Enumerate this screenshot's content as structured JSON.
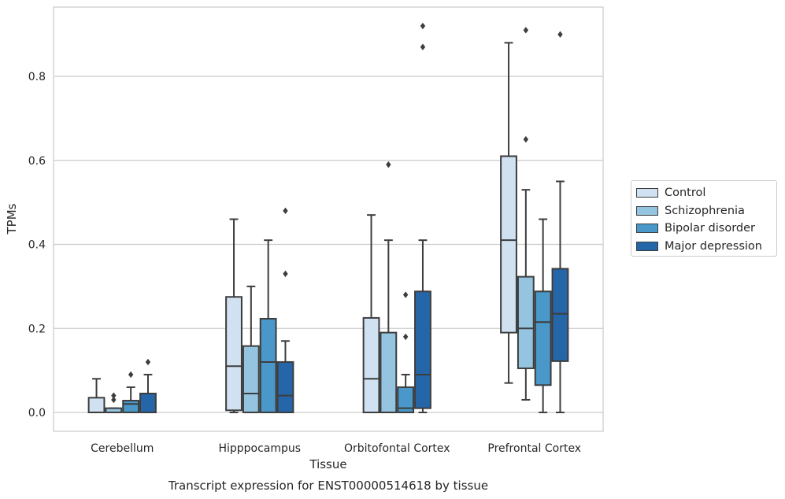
{
  "chart_data": {
    "type": "box",
    "title": "Transcript expression for ENST00000514618 by tissue",
    "xlabel": "Tissue",
    "ylabel": "TPMs",
    "ylim": [
      -0.045,
      0.965
    ],
    "yticks": [
      0.0,
      0.2,
      0.4,
      0.6,
      0.8
    ],
    "ytick_labels": [
      "0.0",
      "0.2",
      "0.4",
      "0.6",
      "0.8"
    ],
    "grid": "horizontal",
    "legend_placement": "outside-right",
    "categories": [
      "Cerebellum",
      "Hipppocampus",
      "Orbitofontal Cortex",
      "Prefrontal Cortex"
    ],
    "series": [
      {
        "name": "Control",
        "color": "#d0e1f2",
        "boxes": [
          {
            "whisker_low": 0.0,
            "q1": 0.0,
            "median": 0.0,
            "q3": 0.035,
            "whisker_high": 0.08,
            "outliers": []
          },
          {
            "whisker_low": 0.0,
            "q1": 0.005,
            "median": 0.11,
            "q3": 0.275,
            "whisker_high": 0.46,
            "outliers": []
          },
          {
            "whisker_low": 0.0,
            "q1": 0.0,
            "median": 0.08,
            "q3": 0.225,
            "whisker_high": 0.47,
            "outliers": []
          },
          {
            "whisker_low": 0.07,
            "q1": 0.19,
            "median": 0.41,
            "q3": 0.61,
            "whisker_high": 0.88,
            "outliers": []
          }
        ]
      },
      {
        "name": "Schizophrenia",
        "color": "#94c4df",
        "boxes": [
          {
            "whisker_low": 0.0,
            "q1": 0.0,
            "median": 0.0,
            "q3": 0.01,
            "whisker_high": 0.01,
            "outliers": [
              0.03,
              0.04
            ]
          },
          {
            "whisker_low": 0.0,
            "q1": 0.0,
            "median": 0.045,
            "q3": 0.158,
            "whisker_high": 0.3,
            "outliers": []
          },
          {
            "whisker_low": 0.0,
            "q1": 0.0,
            "median": 0.0,
            "q3": 0.19,
            "whisker_high": 0.41,
            "outliers": [
              0.59
            ]
          },
          {
            "whisker_low": 0.03,
            "q1": 0.105,
            "median": 0.2,
            "q3": 0.323,
            "whisker_high": 0.53,
            "outliers": [
              0.65,
              0.91
            ]
          }
        ]
      },
      {
        "name": "Bipolar disorder",
        "color": "#4a98c9",
        "boxes": [
          {
            "whisker_low": 0.0,
            "q1": 0.0,
            "median": 0.02,
            "q3": 0.028,
            "whisker_high": 0.06,
            "outliers": [
              0.09
            ]
          },
          {
            "whisker_low": 0.0,
            "q1": 0.0,
            "median": 0.12,
            "q3": 0.223,
            "whisker_high": 0.41,
            "outliers": []
          },
          {
            "whisker_low": 0.0,
            "q1": 0.0,
            "median": 0.01,
            "q3": 0.06,
            "whisker_high": 0.09,
            "outliers": [
              0.18,
              0.28
            ]
          },
          {
            "whisker_low": 0.0,
            "q1": 0.065,
            "median": 0.215,
            "q3": 0.288,
            "whisker_high": 0.46,
            "outliers": []
          }
        ]
      },
      {
        "name": "Major depression",
        "color": "#2566a8",
        "boxes": [
          {
            "whisker_low": 0.0,
            "q1": 0.0,
            "median": 0.0,
            "q3": 0.045,
            "whisker_high": 0.09,
            "outliers": [
              0.12
            ]
          },
          {
            "whisker_low": 0.0,
            "q1": 0.0,
            "median": 0.04,
            "q3": 0.12,
            "whisker_high": 0.17,
            "outliers": [
              0.33,
              0.48
            ]
          },
          {
            "whisker_low": 0.0,
            "q1": 0.01,
            "median": 0.09,
            "q3": 0.288,
            "whisker_high": 0.41,
            "outliers": [
              0.87,
              0.92
            ]
          },
          {
            "whisker_low": 0.0,
            "q1": 0.122,
            "median": 0.235,
            "q3": 0.342,
            "whisker_high": 0.55,
            "outliers": [
              0.9
            ]
          }
        ]
      }
    ]
  }
}
